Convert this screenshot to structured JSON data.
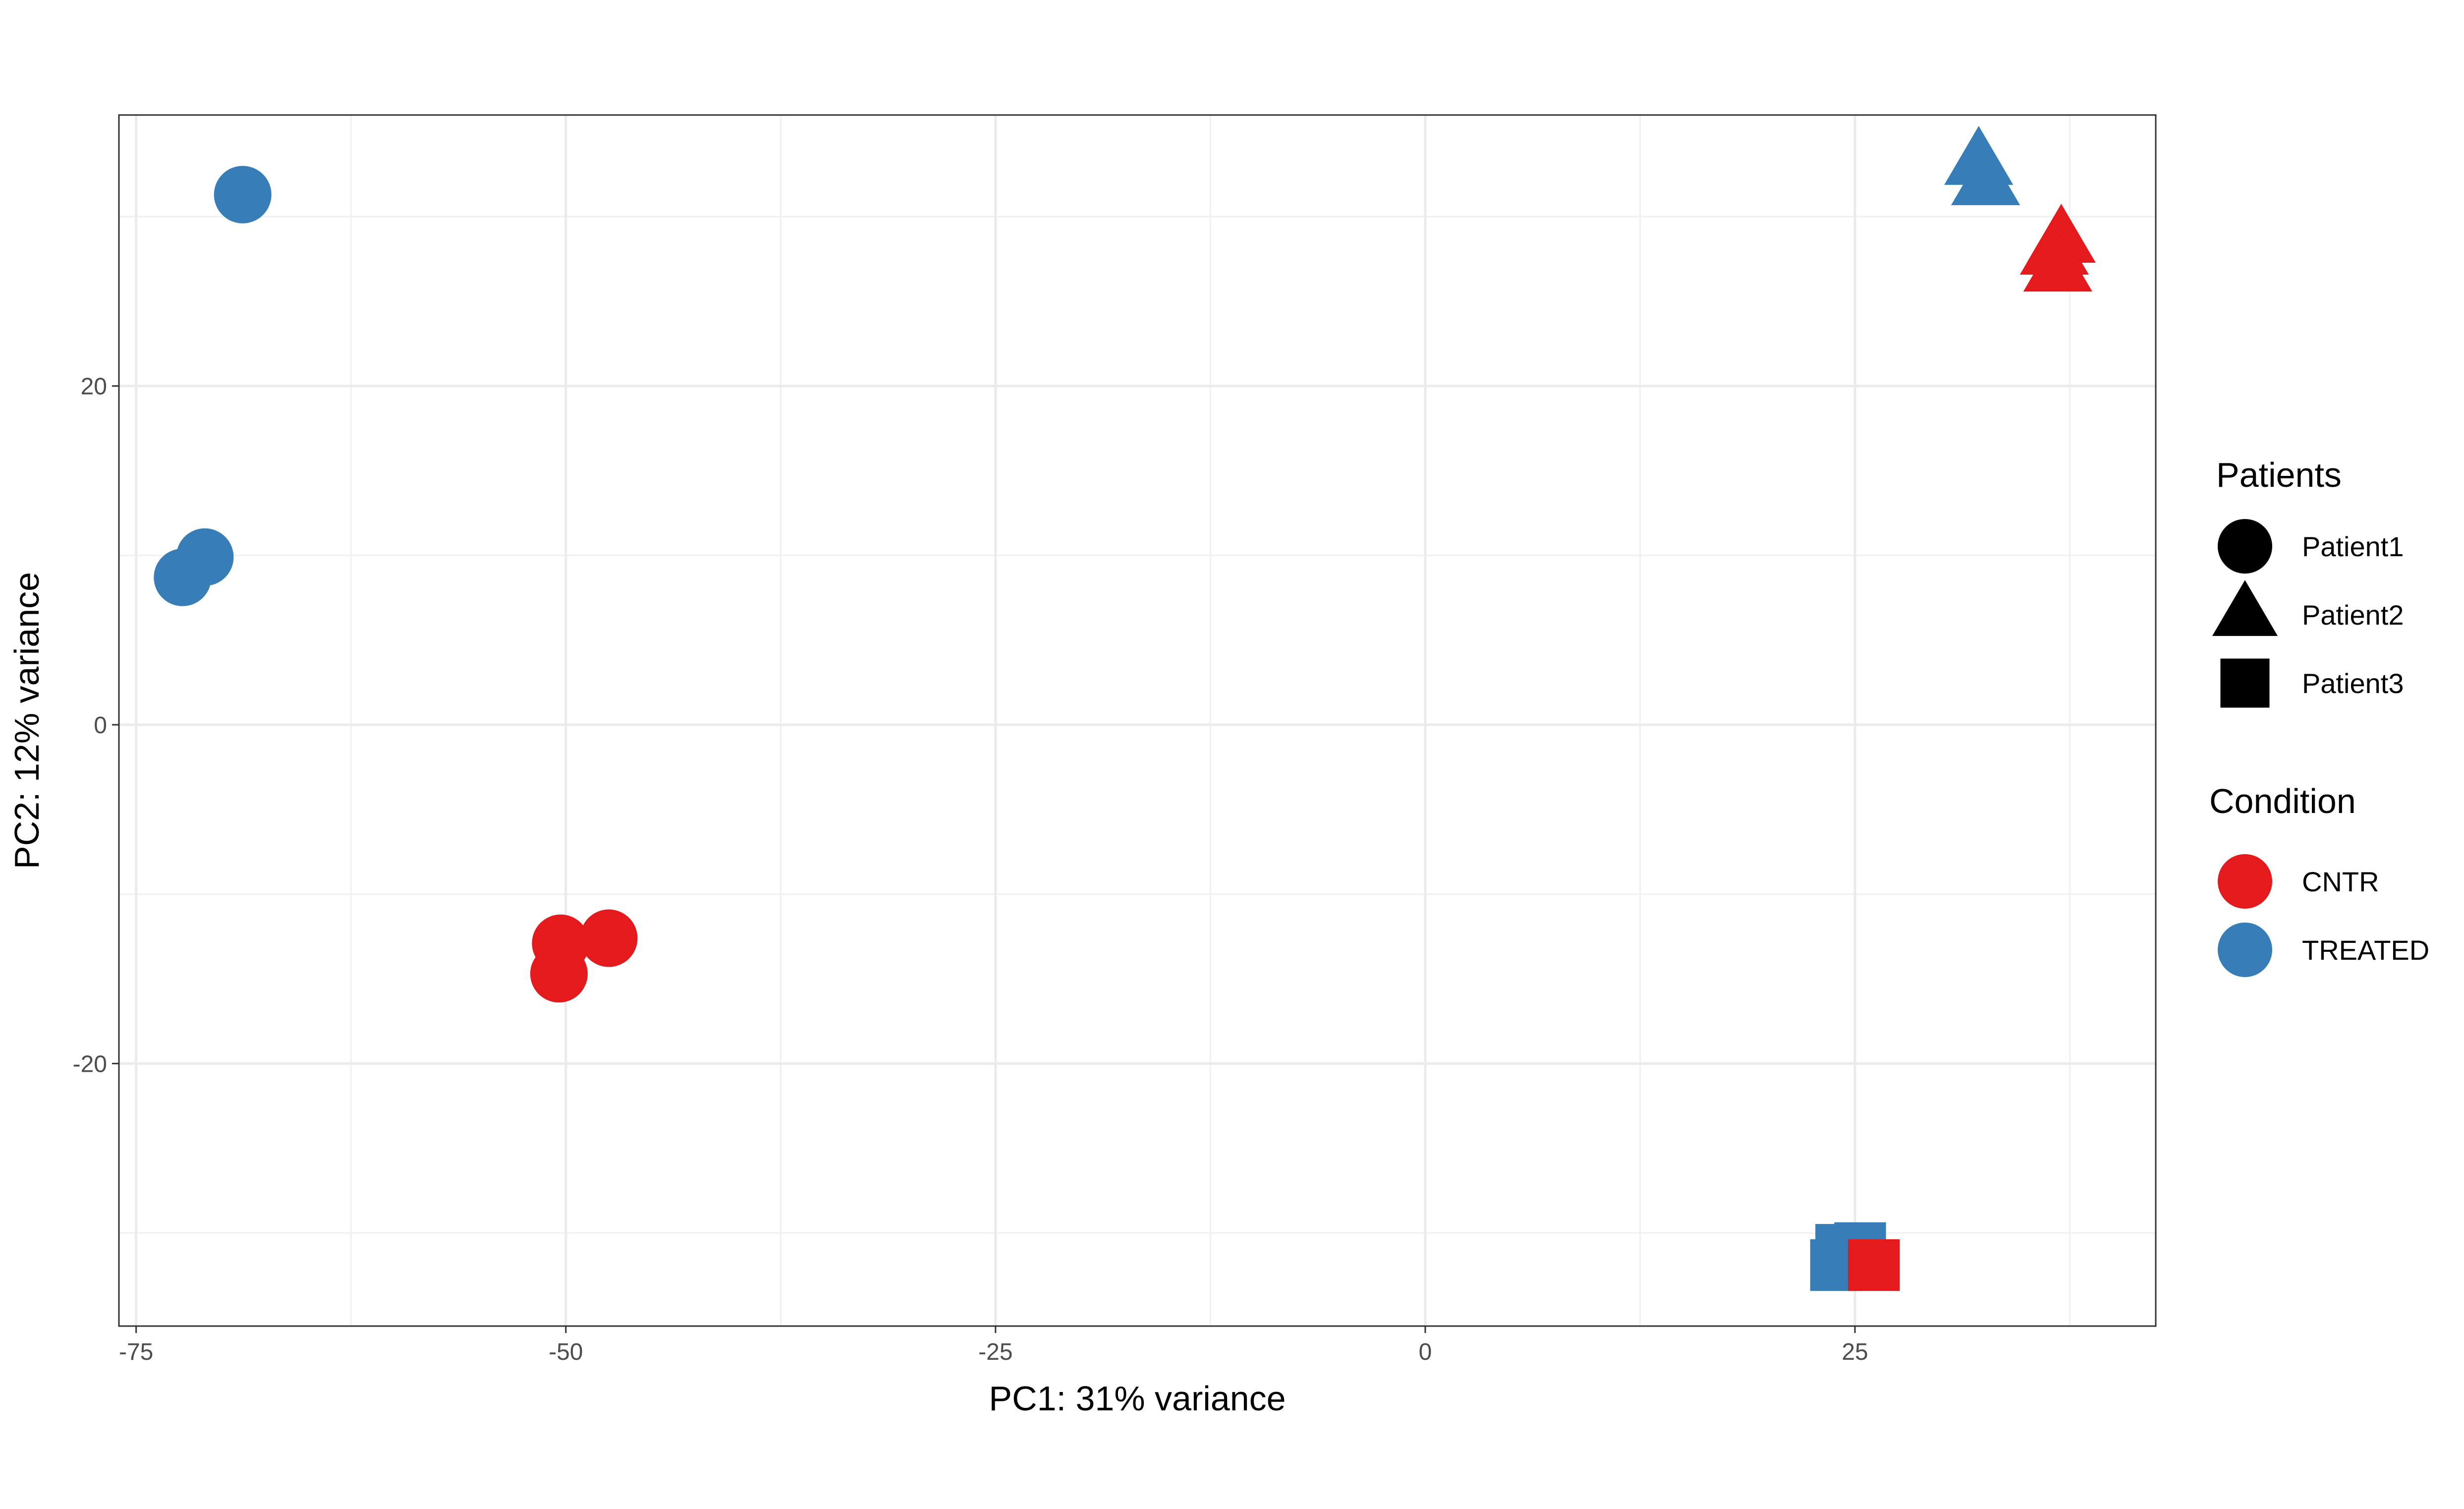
{
  "chart_data": {
    "type": "scatter",
    "xlabel": "PC1: 31% variance",
    "ylabel": "PC2: 12% variance",
    "xlim": [
      -76,
      42.5
    ],
    "ylim": [
      -35.5,
      36
    ],
    "x_ticks": [
      -75,
      -50,
      -25,
      0,
      25
    ],
    "x_tick_labels": [
      "-75",
      "-50",
      "-25",
      "0",
      "25"
    ],
    "y_ticks": [
      -20,
      0,
      20
    ],
    "y_tick_labels": [
      "-20",
      "0",
      "20"
    ],
    "grid": true,
    "legend_position": "right",
    "legend": {
      "shape_title": "Patients",
      "shape_entries": [
        {
          "label": "Patient1",
          "shape": "circle"
        },
        {
          "label": "Patient2",
          "shape": "triangle"
        },
        {
          "label": "Patient3",
          "shape": "square"
        }
      ],
      "color_title": "Condition",
      "color_entries": [
        {
          "label": "CNTR",
          "color": "#e41a1c"
        },
        {
          "label": "TREATED",
          "color": "#377eb8"
        }
      ]
    },
    "points": [
      {
        "x": -68.8,
        "y": 31.3,
        "patient": "Patient1",
        "condition": "TREATED"
      },
      {
        "x": -71.0,
        "y": 9.9,
        "patient": "Patient1",
        "condition": "TREATED"
      },
      {
        "x": -72.3,
        "y": 8.7,
        "patient": "Patient1",
        "condition": "TREATED"
      },
      {
        "x": -50.3,
        "y": -12.9,
        "patient": "Patient1",
        "condition": "CNTR"
      },
      {
        "x": -47.5,
        "y": -12.6,
        "patient": "Patient1",
        "condition": "CNTR"
      },
      {
        "x": -50.4,
        "y": -14.7,
        "patient": "Patient1",
        "condition": "CNTR"
      },
      {
        "x": 32.2,
        "y": 33.2,
        "patient": "Patient2",
        "condition": "TREATED"
      },
      {
        "x": 32.6,
        "y": 32.0,
        "patient": "Patient2",
        "condition": "TREATED"
      },
      {
        "x": 37.0,
        "y": 28.6,
        "patient": "Patient2",
        "condition": "CNTR"
      },
      {
        "x": 36.6,
        "y": 27.9,
        "patient": "Patient2",
        "condition": "CNTR"
      },
      {
        "x": 36.8,
        "y": 26.9,
        "patient": "Patient2",
        "condition": "CNTR"
      },
      {
        "x": 24.2,
        "y": -31.0,
        "patient": "Patient3",
        "condition": "TREATED"
      },
      {
        "x": 25.3,
        "y": -30.9,
        "patient": "Patient3",
        "condition": "TREATED"
      },
      {
        "x": 23.9,
        "y": -31.9,
        "patient": "Patient3",
        "condition": "TREATED"
      },
      {
        "x": 26.1,
        "y": -31.9,
        "patient": "Patient3",
        "condition": "CNTR"
      }
    ]
  }
}
